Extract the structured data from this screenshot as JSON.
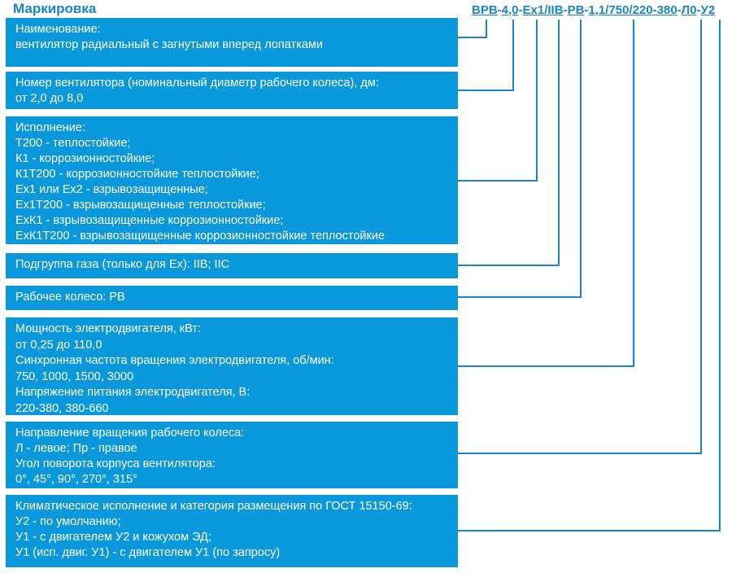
{
  "title": "Маркировка",
  "code": {
    "segments": [
      "ВРВ",
      "4,0",
      "Ex1/",
      "IIB",
      "РВ",
      "1,1/750/220-380",
      "Л0",
      "У2"
    ],
    "separators": [
      "-",
      "-",
      "",
      "-",
      "-",
      "-",
      "-"
    ]
  },
  "boxes": [
    {
      "lines": [
        "Наименование:",
        "вентилятор радиальный с загнутыми вперед лопатками"
      ]
    },
    {
      "lines": [
        "Номер вентилятора (номинальный диаметр рабочего колеса), дм:",
        "от 2,0 до 8,0"
      ]
    },
    {
      "lines": [
        "Исполнение:",
        "Т200 - теплостойкие;",
        "К1 - коррозионностойкие;",
        "К1Т200 - коррозионностойкие теплостойкие;",
        "Ex1 или Ex2 - взрывозащищенные;",
        "Ex1Т200 - взрывозащищенные теплостойкие;",
        "ExК1 - взрывозащищенные коррозионностойкие;",
        "ExК1Т200 - взрывозащищенные коррозионностойкие теплостойкие"
      ]
    },
    {
      "lines": [
        "Подгруппа газа (только для Ex): IIB; IIC"
      ]
    },
    {
      "lines": [
        "Рабочее колесо: РВ"
      ]
    },
    {
      "lines": [
        "Мощность электродвигателя, кВт:",
        "от 0,25 до 110,0",
        "Синхронная частота вращения электродвигателя, об/мин:",
        "750, 1000, 1500, 3000",
        "Напряжение питания электродвигателя, В:",
        "220-380, 380-660"
      ]
    },
    {
      "lines": [
        "Направление вращения рабочего колеса:",
        "Л - левое; Пр - правое",
        "Угол поворота корпуса вентилятора:",
        "0°, 45°, 90°, 270°, 315°"
      ]
    },
    {
      "lines": [
        "Климатическое исполнение и категория размещения по ГОСТ 15150-69:",
        "У2 - по умолчанию;",
        "У1 - с двигателем У2 и кожухом ЭД;",
        "У1 (исп. двиг. У1) - с двигателем У1 (по запросу)"
      ]
    }
  ],
  "colors": {
    "box": "#0a98dc",
    "line": "#1a86c8"
  }
}
